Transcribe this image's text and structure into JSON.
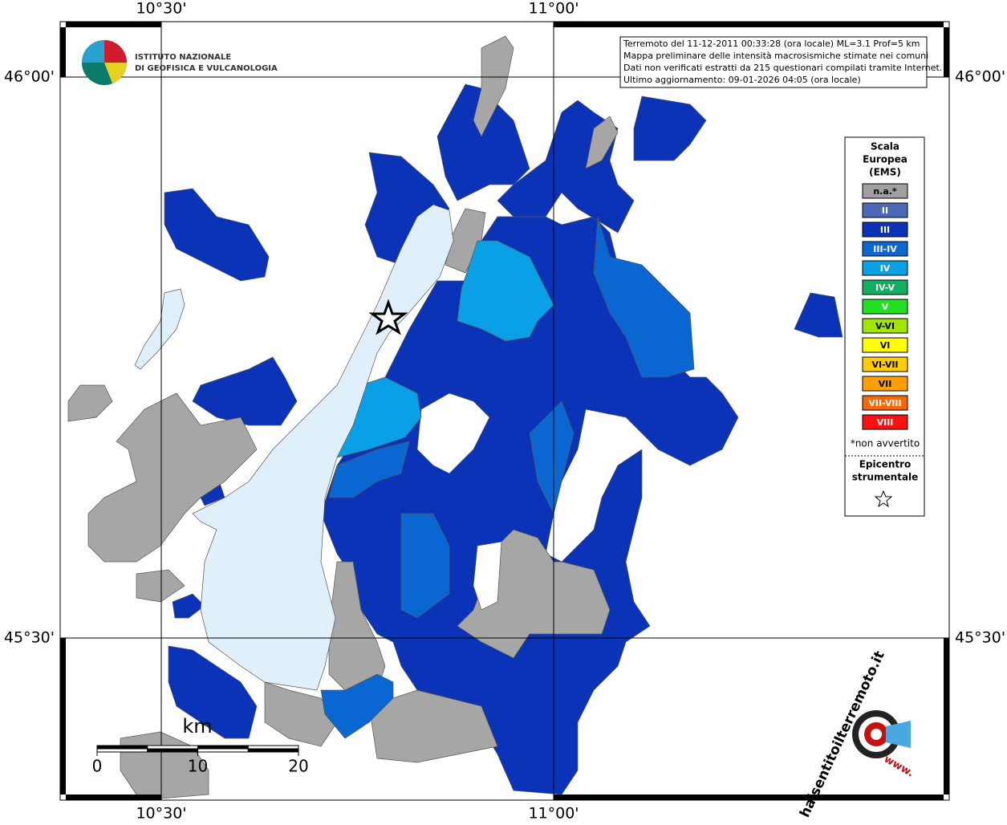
{
  "logo": {
    "line1": "ISTITUTO NAZIONALE",
    "line2": "DI GEOFISICA E VULCANOLOGIA"
  },
  "info": [
    "Terremoto del 11-12-2011 00:33:28 (ora locale) ML=3.1 Prof=5 km",
    "Mappa preliminare delle intensità macrosismiche stimate nei comuni",
    "Dati non verificati estratti da 215 questionari compilati tramite Internet.",
    "Ultimo aggiornamento: 09-01-2026 04:05 (ora locale)"
  ],
  "graticule": {
    "lon": [
      "10°30'",
      "11°00'"
    ],
    "lat": [
      "46°00'",
      "45°30'"
    ]
  },
  "legend": {
    "title": [
      "Scala",
      "Europea",
      "(EMS)"
    ],
    "items": [
      {
        "label": "n.a.*",
        "color": "#a0a0a0"
      },
      {
        "label": "II",
        "color": "#4a6ab8"
      },
      {
        "label": "III",
        "color": "#0a33b8"
      },
      {
        "label": "III-IV",
        "color": "#0a66d0"
      },
      {
        "label": "IV",
        "color": "#0aa0e6"
      },
      {
        "label": "IV-V",
        "color": "#10b060"
      },
      {
        "label": "V",
        "color": "#22e022"
      },
      {
        "label": "V-VI",
        "color": "#a0e600"
      },
      {
        "label": "VI",
        "color": "#ffff00"
      },
      {
        "label": "VI-VII",
        "color": "#ffcc00"
      },
      {
        "label": "VII",
        "color": "#ffa000"
      },
      {
        "label": "VII-VIII",
        "color": "#ff6600"
      },
      {
        "label": "VIII",
        "color": "#ff1010"
      }
    ],
    "note": "*non avvertito",
    "epicenter": [
      "Epicentro",
      "strumentale"
    ]
  },
  "scalebar": {
    "unit": "km",
    "ticks": [
      0,
      10,
      20
    ]
  },
  "brand": {
    "name": "haisentitoilterremoto.it",
    "www": "www."
  }
}
